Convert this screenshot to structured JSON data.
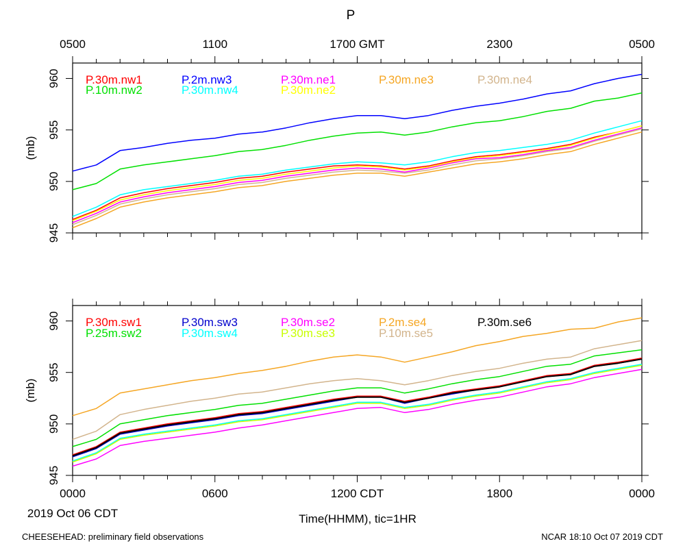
{
  "title": "P",
  "top_axis": {
    "tick_labels": [
      "0500",
      "1100",
      "1700 GMT",
      "2300",
      "0500"
    ]
  },
  "bottom_axis": {
    "tick_labels": [
      "0000",
      "0600",
      "1200 CDT",
      "1800",
      "0000"
    ],
    "date_label": "2019 Oct 06 CDT",
    "xlabel": "Time(HHMM), tic=1HR"
  },
  "footer": {
    "left": "CHEESEHEAD: preliminary field observations",
    "right": "NCAR 18:10 Oct 07 2019 CDT"
  },
  "chart_data": [
    {
      "type": "line",
      "panel": "top",
      "ylabel": "(mb)",
      "ylim": [
        945,
        961.5
      ],
      "xlim": [
        0,
        24
      ],
      "yticks": [
        945,
        950,
        955,
        960
      ],
      "x_unit": "hours CDT",
      "x": [
        0,
        1,
        2,
        3,
        4,
        5,
        6,
        7,
        8,
        9,
        10,
        11,
        12,
        13,
        14,
        15,
        16,
        17,
        18,
        19,
        20,
        21,
        22,
        23,
        24
      ],
      "series": [
        {
          "name": "P.30m.nw1",
          "color": "#ff0000",
          "values": [
            946.3,
            947.2,
            948.4,
            948.9,
            949.3,
            949.6,
            949.9,
            950.3,
            950.5,
            950.9,
            951.2,
            951.5,
            951.6,
            951.5,
            951.2,
            951.5,
            952.0,
            952.4,
            952.6,
            952.9,
            953.2,
            953.6,
            954.3,
            954.8,
            955.4
          ]
        },
        {
          "name": "P.2m.nw3",
          "color": "#0000ff",
          "values": [
            951.0,
            951.6,
            953.0,
            953.3,
            953.7,
            954.0,
            954.2,
            954.6,
            954.8,
            955.2,
            955.7,
            956.1,
            956.4,
            956.4,
            956.1,
            956.4,
            956.9,
            957.3,
            957.6,
            958.0,
            958.5,
            958.8,
            959.5,
            960.0,
            960.4
          ]
        },
        {
          "name": "P.30m.ne1",
          "color": "#ff00ff",
          "values": [
            946.0,
            946.9,
            948.0,
            948.5,
            948.9,
            949.2,
            949.5,
            949.9,
            950.1,
            950.5,
            950.8,
            951.1,
            951.3,
            951.2,
            950.9,
            951.3,
            951.8,
            952.2,
            952.3,
            952.6,
            953.0,
            953.3,
            954.0,
            954.6,
            955.2
          ]
        },
        {
          "name": "P.30m.ne3",
          "color": "#f5a623",
          "values": [
            945.5,
            946.4,
            947.5,
            948.0,
            948.4,
            948.7,
            949.0,
            949.4,
            949.6,
            950.0,
            950.3,
            950.6,
            950.8,
            950.8,
            950.5,
            950.9,
            951.3,
            951.7,
            951.9,
            952.2,
            952.6,
            952.9,
            953.6,
            954.2,
            954.8
          ]
        },
        {
          "name": "P.30m.ne4",
          "color": "#d2b48c",
          "values": [
            945.8,
            946.7,
            947.8,
            948.3,
            948.7,
            949.0,
            949.3,
            949.7,
            949.9,
            950.3,
            950.6,
            950.9,
            951.1,
            951.0,
            950.8,
            951.1,
            951.6,
            952.0,
            952.2,
            952.5,
            952.9,
            953.2,
            953.9,
            954.5,
            955.1
          ]
        },
        {
          "name": "P.10m.nw2",
          "color": "#00e000",
          "values": [
            949.2,
            949.8,
            951.2,
            951.6,
            951.9,
            952.2,
            952.5,
            952.9,
            953.1,
            953.5,
            954.0,
            954.4,
            954.7,
            954.8,
            954.5,
            954.8,
            955.3,
            955.7,
            955.9,
            956.3,
            956.8,
            957.1,
            957.8,
            958.1,
            958.6
          ]
        },
        {
          "name": "P.30m.nw4",
          "color": "#00ffff",
          "values": [
            946.6,
            947.5,
            948.7,
            949.2,
            949.5,
            949.8,
            950.1,
            950.5,
            950.7,
            951.1,
            951.4,
            951.7,
            951.9,
            951.8,
            951.6,
            951.9,
            952.4,
            952.8,
            953.0,
            953.3,
            953.6,
            954.0,
            954.7,
            955.3,
            955.9
          ]
        },
        {
          "name": "P.30m.ne2",
          "color": "#ffff00",
          "values": [
            946.2,
            947.1,
            948.2,
            948.7,
            949.1,
            949.4,
            949.7,
            950.1,
            950.3,
            950.7,
            951.0,
            951.3,
            951.5,
            951.4,
            951.1,
            951.4,
            951.9,
            952.3,
            952.5,
            952.8,
            953.1,
            953.5,
            954.2,
            954.8,
            955.4
          ]
        }
      ]
    },
    {
      "type": "line",
      "panel": "bottom",
      "ylabel": "(mb)",
      "ylim": [
        945,
        961.5
      ],
      "xlim": [
        0,
        24
      ],
      "yticks": [
        945,
        950,
        955,
        960
      ],
      "x_unit": "hours CDT",
      "x": [
        0,
        1,
        2,
        3,
        4,
        5,
        6,
        7,
        8,
        9,
        10,
        11,
        12,
        13,
        14,
        15,
        16,
        17,
        18,
        19,
        20,
        21,
        22,
        23,
        24
      ],
      "series": [
        {
          "name": "P.30m.sw1",
          "color": "#ff0000",
          "values": [
            947.0,
            947.8,
            949.2,
            949.6,
            950.0,
            950.3,
            950.6,
            951.0,
            951.2,
            951.6,
            952.0,
            952.4,
            952.7,
            952.7,
            952.2,
            952.6,
            953.1,
            953.4,
            953.7,
            954.2,
            954.7,
            954.9,
            955.7,
            956.0,
            956.4
          ]
        },
        {
          "name": "P.30m.sw3",
          "color": "#0000cd",
          "values": [
            946.8,
            947.6,
            949.0,
            949.4,
            949.8,
            950.1,
            950.4,
            950.8,
            951.0,
            951.4,
            951.8,
            952.2,
            952.6,
            952.6,
            952.0,
            952.5,
            952.9,
            953.3,
            953.6,
            954.1,
            954.6,
            954.8,
            955.6,
            955.9,
            956.3
          ]
        },
        {
          "name": "P.30m.se2",
          "color": "#ff00ff",
          "values": [
            945.9,
            946.6,
            947.9,
            948.3,
            948.6,
            948.9,
            949.2,
            949.6,
            949.9,
            950.3,
            950.7,
            951.1,
            951.5,
            951.6,
            951.1,
            951.4,
            951.9,
            952.3,
            952.6,
            953.1,
            953.6,
            953.9,
            954.5,
            954.9,
            955.3
          ]
        },
        {
          "name": "P.2m.se4",
          "color": "#f5a623",
          "values": [
            950.8,
            951.5,
            953.0,
            953.4,
            953.8,
            954.2,
            954.5,
            954.9,
            955.2,
            955.6,
            956.1,
            956.5,
            956.7,
            956.5,
            956.0,
            956.5,
            957.0,
            957.6,
            958.0,
            958.5,
            958.8,
            959.2,
            959.3,
            959.9,
            960.3
          ]
        },
        {
          "name": "P.30m.se6",
          "color": "#000000",
          "values": [
            946.9,
            947.7,
            949.1,
            949.5,
            949.9,
            950.2,
            950.5,
            950.9,
            951.1,
            951.5,
            951.9,
            952.3,
            952.6,
            952.6,
            952.1,
            952.5,
            953.0,
            953.3,
            953.6,
            954.1,
            954.6,
            954.8,
            955.6,
            955.9,
            956.3
          ]
        },
        {
          "name": "P.25m.sw2",
          "color": "#00e000",
          "values": [
            947.8,
            948.5,
            950.0,
            950.4,
            950.8,
            951.1,
            951.4,
            951.8,
            952.0,
            952.4,
            952.8,
            953.2,
            953.5,
            953.5,
            953.0,
            953.4,
            953.9,
            954.3,
            954.6,
            955.1,
            955.6,
            955.8,
            956.6,
            956.9,
            957.2
          ]
        },
        {
          "name": "P.30m.sw4",
          "color": "#00ffff",
          "values": [
            946.4,
            947.2,
            948.6,
            949.0,
            949.3,
            949.6,
            949.9,
            950.3,
            950.5,
            950.9,
            951.3,
            951.7,
            952.1,
            952.1,
            951.6,
            951.9,
            952.4,
            952.8,
            953.1,
            953.6,
            954.1,
            954.4,
            955.0,
            955.4,
            955.8
          ]
        },
        {
          "name": "P.30m.se3",
          "color": "#c8ff00",
          "values": [
            946.3,
            947.1,
            948.5,
            948.9,
            949.2,
            949.5,
            949.8,
            950.2,
            950.4,
            950.8,
            951.2,
            951.6,
            952.0,
            952.0,
            951.5,
            951.8,
            952.3,
            952.7,
            953.0,
            953.5,
            954.0,
            954.3,
            954.9,
            955.3,
            955.7
          ]
        },
        {
          "name": "P.10m.se5",
          "color": "#d2b48c",
          "values": [
            948.5,
            949.3,
            950.9,
            951.4,
            951.8,
            952.2,
            952.5,
            952.9,
            953.1,
            953.5,
            953.9,
            954.2,
            954.4,
            954.2,
            953.8,
            954.2,
            954.7,
            955.1,
            955.4,
            955.9,
            956.3,
            956.5,
            957.3,
            957.7,
            958.1
          ]
        }
      ]
    }
  ]
}
